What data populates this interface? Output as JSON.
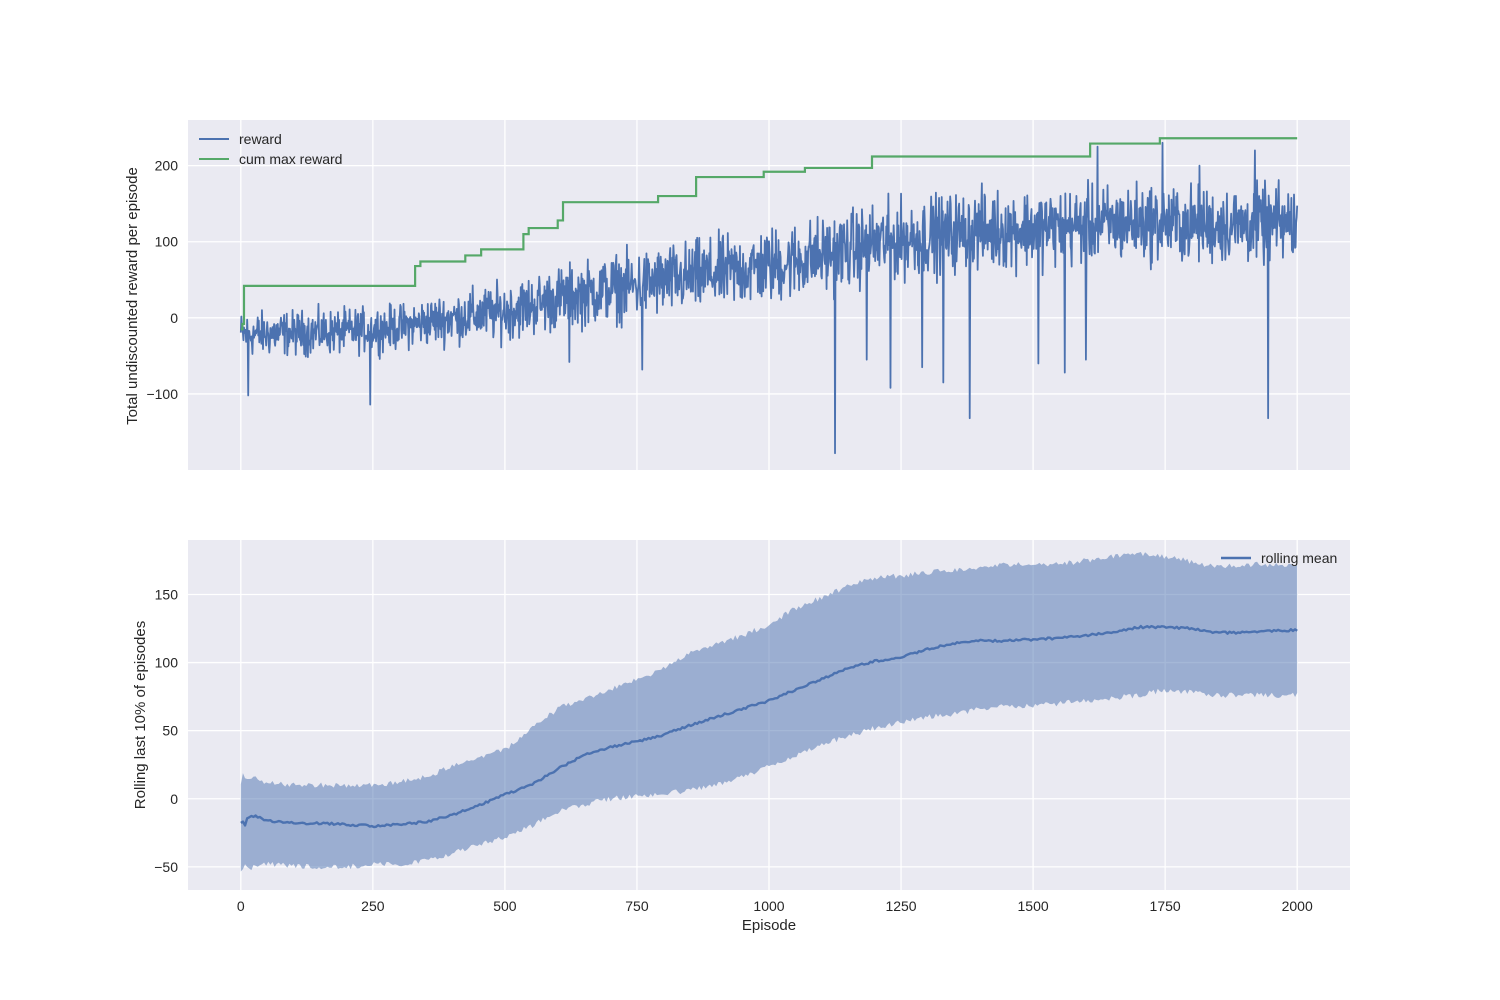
{
  "chart_data": [
    {
      "type": "line",
      "title": "",
      "xlabel": "",
      "ylabel": "Total undiscounted reward per episode",
      "xlim": [
        -100,
        2100
      ],
      "ylim": [
        -200,
        260
      ],
      "xticks": [
        0,
        250,
        500,
        750,
        1000,
        1250,
        1500,
        1750,
        2000
      ],
      "yticks": [
        -100,
        0,
        100,
        200
      ],
      "ytick_labels": [
        "−100",
        "0",
        "100",
        "200"
      ],
      "grid": true,
      "legend_position": "upper-left",
      "series": [
        {
          "name": "reward",
          "color": "#4c72b0",
          "trend_points": [
            [
              0,
              -22
            ],
            [
              100,
              -20
            ],
            [
              200,
              -18
            ],
            [
              300,
              -12
            ],
            [
              400,
              0
            ],
            [
              500,
              8
            ],
            [
              600,
              25
            ],
            [
              700,
              38
            ],
            [
              800,
              48
            ],
            [
              900,
              58
            ],
            [
              1000,
              68
            ],
            [
              1100,
              82
            ],
            [
              1200,
              98
            ],
            [
              1300,
              108
            ],
            [
              1400,
              115
            ],
            [
              1500,
              118
            ],
            [
              1600,
              120
            ],
            [
              1700,
              126
            ],
            [
              1800,
              122
            ],
            [
              1900,
              122
            ],
            [
              2000,
              124
            ]
          ],
          "spread_points": [
            [
              0,
              28
            ],
            [
              300,
              28
            ],
            [
              600,
              40
            ],
            [
              1000,
              48
            ],
            [
              1300,
              50
            ],
            [
              2000,
              48
            ]
          ],
          "outliers": [
            [
              14,
              -102
            ],
            [
              245,
              -114
            ],
            [
              410,
              -20
            ],
            [
              622,
              -58
            ],
            [
              760,
              -68
            ],
            [
              1125,
              -178
            ],
            [
              1185,
              -55
            ],
            [
              1230,
              -92
            ],
            [
              1290,
              -65
            ],
            [
              1330,
              -85
            ],
            [
              1380,
              -132
            ],
            [
              1510,
              -60
            ],
            [
              1560,
              -72
            ],
            [
              1600,
              -55
            ],
            [
              1622,
              225
            ],
            [
              1745,
              230
            ],
            [
              1815,
              200
            ],
            [
              1920,
              220
            ],
            [
              1945,
              -132
            ]
          ]
        },
        {
          "name": "cum max reward",
          "color": "#55a868",
          "steps": [
            [
              0,
              -15
            ],
            [
              3,
              -8
            ],
            [
              6,
              42
            ],
            [
              330,
              68
            ],
            [
              340,
              74
            ],
            [
              425,
              82
            ],
            [
              455,
              90
            ],
            [
              535,
              110
            ],
            [
              545,
              118
            ],
            [
              600,
              128
            ],
            [
              610,
              152
            ],
            [
              790,
              160
            ],
            [
              862,
              185
            ],
            [
              990,
              192
            ],
            [
              1068,
              197
            ],
            [
              1195,
              212
            ],
            [
              1608,
              229
            ],
            [
              1740,
              236
            ],
            [
              2000,
              236
            ]
          ]
        }
      ]
    },
    {
      "type": "area",
      "title": "",
      "xlabel": "Episode",
      "ylabel": "Rolling last 10% of episodes",
      "xlim": [
        -100,
        2100
      ],
      "ylim": [
        -67,
        190
      ],
      "xticks": [
        0,
        250,
        500,
        750,
        1000,
        1250,
        1500,
        1750,
        2000
      ],
      "xtick_labels": [
        "0",
        "250",
        "500",
        "750",
        "1000",
        "1250",
        "1500",
        "1750",
        "2000"
      ],
      "yticks": [
        -50,
        0,
        50,
        100,
        150
      ],
      "ytick_labels": [
        "−50",
        "0",
        "50",
        "100",
        "150"
      ],
      "grid": true,
      "legend_position": "upper-right",
      "series": [
        {
          "name": "rolling mean",
          "color": "#4c72b0",
          "band_color": "#4c72b0",
          "x": [
            0,
            25,
            50,
            100,
            150,
            200,
            250,
            300,
            350,
            400,
            450,
            500,
            550,
            600,
            650,
            700,
            750,
            800,
            850,
            900,
            950,
            1000,
            1050,
            1100,
            1150,
            1200,
            1250,
            1300,
            1350,
            1400,
            1450,
            1500,
            1550,
            1600,
            1650,
            1700,
            1750,
            1800,
            1850,
            1900,
            1950,
            2000
          ],
          "mean": [
            -20,
            -12,
            -16,
            -18,
            -18,
            -19,
            -20,
            -19,
            -17,
            -12,
            -5,
            3,
            10,
            22,
            32,
            38,
            42,
            47,
            54,
            60,
            66,
            72,
            80,
            88,
            96,
            101,
            104,
            110,
            114,
            116,
            116,
            117,
            118,
            120,
            122,
            126,
            126,
            125,
            122,
            122,
            123,
            124
          ],
          "upper": [
            10,
            15,
            12,
            10,
            10,
            10,
            10,
            12,
            16,
            24,
            30,
            36,
            52,
            66,
            74,
            80,
            88,
            95,
            108,
            114,
            120,
            128,
            140,
            148,
            156,
            162,
            164,
            166,
            168,
            170,
            172,
            172,
            172,
            175,
            178,
            180,
            178,
            174,
            170,
            172,
            172,
            172
          ],
          "lower": [
            -45,
            -48,
            -48,
            -49,
            -50,
            -50,
            -48,
            -48,
            -45,
            -40,
            -34,
            -28,
            -20,
            -10,
            -4,
            0,
            2,
            4,
            6,
            10,
            16,
            24,
            32,
            40,
            46,
            52,
            56,
            60,
            62,
            66,
            68,
            68,
            70,
            72,
            74,
            76,
            80,
            78,
            76,
            76,
            76,
            76
          ]
        }
      ]
    }
  ]
}
